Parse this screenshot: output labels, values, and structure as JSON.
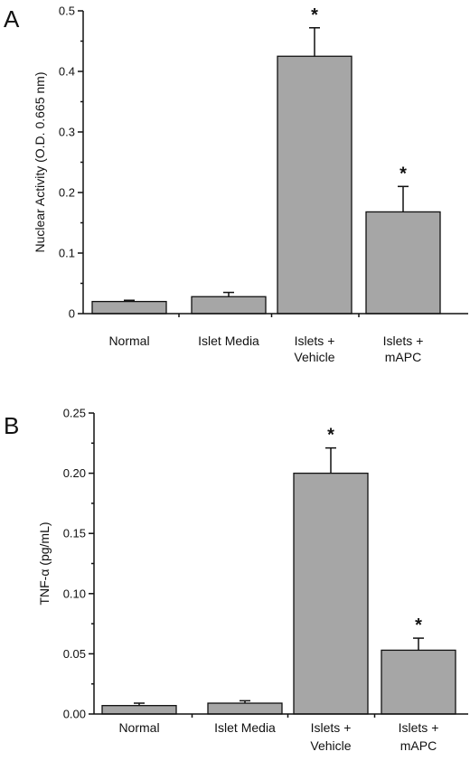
{
  "chart_data": [
    {
      "panel_label": "A",
      "type": "bar",
      "categories": [
        [
          "Normal"
        ],
        [
          "Islet Media"
        ],
        [
          "Islets +",
          "Vehicle"
        ],
        [
          "Islets +",
          "mAPC"
        ]
      ],
      "values": [
        0.02,
        0.028,
        0.425,
        0.168
      ],
      "errors": [
        0.002,
        0.007,
        0.047,
        0.042
      ],
      "significant": [
        false,
        false,
        true,
        true
      ],
      "significance_marker": "*",
      "ylabel": "Nuclear Activity (O.D. 0.665 nm)",
      "xlabel": "",
      "ylim": [
        0,
        0.5
      ],
      "yticks": [
        0,
        0.1,
        0.2,
        0.3,
        0.4,
        0.5
      ],
      "ytick_labels": [
        "0",
        "0.1",
        "0.2",
        "0.3",
        "0.4",
        "0.5"
      ],
      "bar_color": "#a6a6a6",
      "grid": false
    },
    {
      "panel_label": "B",
      "type": "bar",
      "categories": [
        [
          "Normal"
        ],
        [
          "Islet Media"
        ],
        [
          "Islets +",
          "Vehicle"
        ],
        [
          "Islets +",
          "mAPC"
        ]
      ],
      "values": [
        0.007,
        0.009,
        0.2,
        0.053
      ],
      "errors": [
        0.002,
        0.002,
        0.021,
        0.01
      ],
      "significant": [
        false,
        false,
        true,
        true
      ],
      "significance_marker": "*",
      "ylabel": "TNF-α (pg/mL)",
      "xlabel": "",
      "ylim": [
        0,
        0.25
      ],
      "yticks": [
        0,
        0.05,
        0.1,
        0.15,
        0.2,
        0.25
      ],
      "ytick_labels": [
        "0.00",
        "0.05",
        "0.10",
        "0.15",
        "0.20",
        "0.25"
      ],
      "bar_color": "#a6a6a6",
      "grid": false
    }
  ]
}
